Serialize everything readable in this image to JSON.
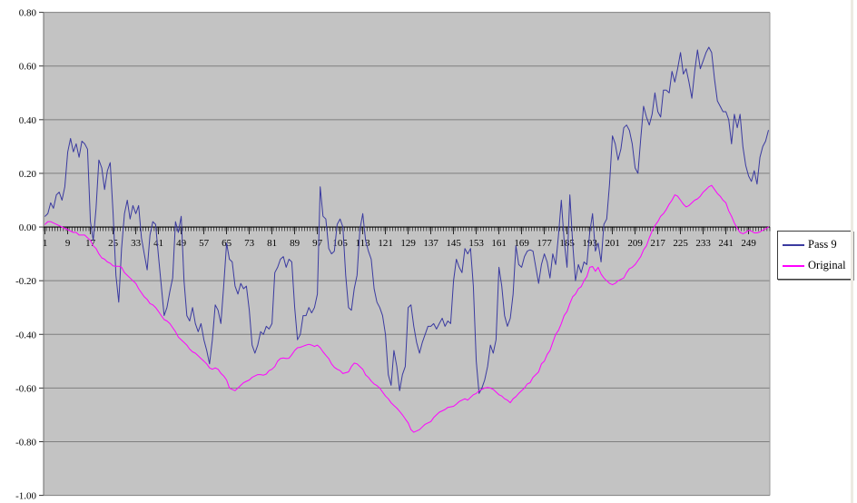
{
  "chart_data": {
    "type": "line",
    "title": "",
    "xlabel": "",
    "ylabel": "",
    "ylim": [
      -1.0,
      0.8
    ],
    "grid": true,
    "legend_position": "right",
    "plot_bg": "#c3c3c3",
    "grid_color": "#7f7f7f",
    "axis_color": "#000000",
    "n_points": 256,
    "x_tick_step": 8,
    "x_tick_labels": [
      "1",
      "9",
      "17",
      "25",
      "33",
      "41",
      "49",
      "57",
      "65",
      "73",
      "81",
      "89",
      "97",
      "105",
      "113",
      "121",
      "129",
      "137",
      "145",
      "153",
      "161",
      "169",
      "177",
      "185",
      "193",
      "201",
      "209",
      "217",
      "225",
      "233",
      "241",
      "249"
    ],
    "y_ticks": {
      "labels": [
        "0.80",
        "0.60",
        "0.40",
        "0.20",
        "0.00",
        "-0.20",
        "-0.40",
        "-0.60",
        "-0.80",
        "-1.00"
      ],
      "values": [
        0.8,
        0.6,
        0.4,
        0.2,
        0.0,
        -0.2,
        -0.4,
        -0.6,
        -0.8,
        -1.0
      ]
    },
    "series": [
      {
        "name": "Pass 9",
        "color": "#3a3aa0",
        "values": [
          0.04,
          0.05,
          0.09,
          0.07,
          0.12,
          0.13,
          0.1,
          0.15,
          0.28,
          0.33,
          0.28,
          0.31,
          0.26,
          0.32,
          0.31,
          0.29,
          0.02,
          -0.05,
          0.07,
          0.25,
          0.22,
          0.14,
          0.21,
          0.24,
          0.05,
          -0.18,
          -0.28,
          -0.08,
          0.05,
          0.1,
          0.03,
          0.08,
          0.05,
          0.08,
          -0.04,
          -0.1,
          -0.16,
          -0.03,
          0.02,
          0.01,
          -0.11,
          -0.22,
          -0.33,
          -0.3,
          -0.24,
          -0.19,
          0.02,
          -0.02,
          0.04,
          -0.2,
          -0.33,
          -0.35,
          -0.3,
          -0.36,
          -0.39,
          -0.36,
          -0.42,
          -0.46,
          -0.51,
          -0.42,
          -0.29,
          -0.31,
          -0.36,
          -0.22,
          -0.06,
          -0.12,
          -0.13,
          -0.22,
          -0.25,
          -0.21,
          -0.23,
          -0.22,
          -0.31,
          -0.44,
          -0.47,
          -0.44,
          -0.39,
          -0.4,
          -0.37,
          -0.38,
          -0.36,
          -0.17,
          -0.15,
          -0.12,
          -0.11,
          -0.15,
          -0.12,
          -0.13,
          -0.3,
          -0.42,
          -0.4,
          -0.33,
          -0.33,
          -0.3,
          -0.32,
          -0.3,
          -0.25,
          0.15,
          0.04,
          0.03,
          -0.08,
          -0.1,
          -0.09,
          0.01,
          0.03,
          0.0,
          -0.18,
          -0.3,
          -0.31,
          -0.23,
          -0.18,
          -0.01,
          0.05,
          -0.05,
          -0.09,
          -0.12,
          -0.23,
          -0.28,
          -0.3,
          -0.33,
          -0.4,
          -0.55,
          -0.59,
          -0.46,
          -0.52,
          -0.61,
          -0.55,
          -0.52,
          -0.3,
          -0.29,
          -0.37,
          -0.43,
          -0.47,
          -0.43,
          -0.4,
          -0.37,
          -0.37,
          -0.36,
          -0.38,
          -0.36,
          -0.34,
          -0.37,
          -0.35,
          -0.36,
          -0.2,
          -0.12,
          -0.15,
          -0.17,
          -0.08,
          -0.1,
          -0.08,
          -0.22,
          -0.5,
          -0.62,
          -0.6,
          -0.57,
          -0.52,
          -0.44,
          -0.47,
          -0.42,
          -0.15,
          -0.22,
          -0.33,
          -0.37,
          -0.34,
          -0.25,
          -0.07,
          -0.14,
          -0.15,
          -0.11,
          -0.09,
          -0.085,
          -0.09,
          -0.15,
          -0.21,
          -0.14,
          -0.1,
          -0.13,
          -0.19,
          -0.1,
          -0.14,
          -0.03,
          0.1,
          -0.05,
          -0.15,
          0.12,
          -0.06,
          -0.2,
          -0.14,
          -0.17,
          -0.13,
          -0.14,
          -0.02,
          0.05,
          -0.09,
          -0.06,
          -0.13,
          0.01,
          0.03,
          0.16,
          0.34,
          0.31,
          0.25,
          0.29,
          0.37,
          0.38,
          0.36,
          0.31,
          0.22,
          0.2,
          0.33,
          0.45,
          0.41,
          0.38,
          0.42,
          0.5,
          0.43,
          0.41,
          0.51,
          0.51,
          0.5,
          0.58,
          0.54,
          0.59,
          0.65,
          0.57,
          0.59,
          0.54,
          0.48,
          0.58,
          0.66,
          0.59,
          0.62,
          0.65,
          0.67,
          0.65,
          0.55,
          0.47,
          0.45,
          0.43,
          0.43,
          0.4,
          0.31,
          0.42,
          0.37,
          0.42,
          0.3,
          0.23,
          0.19,
          0.17,
          0.21,
          0.16,
          0.26,
          0.3,
          0.32,
          0.36
        ]
      },
      {
        "name": "Original",
        "color": "#ff00ff",
        "values": [
          0.01,
          0.02,
          0.02,
          0.015,
          0.01,
          0.005,
          0.0,
          -0.005,
          -0.01,
          -0.015,
          -0.02,
          -0.02,
          -0.03,
          -0.03,
          -0.03,
          -0.04,
          -0.05,
          -0.07,
          -0.08,
          -0.1,
          -0.115,
          -0.12,
          -0.13,
          -0.135,
          -0.145,
          -0.146,
          -0.146,
          -0.15,
          -0.17,
          -0.18,
          -0.19,
          -0.2,
          -0.21,
          -0.23,
          -0.245,
          -0.26,
          -0.27,
          -0.285,
          -0.29,
          -0.3,
          -0.315,
          -0.33,
          -0.345,
          -0.35,
          -0.36,
          -0.375,
          -0.39,
          -0.41,
          -0.42,
          -0.43,
          -0.44,
          -0.455,
          -0.465,
          -0.47,
          -0.48,
          -0.49,
          -0.5,
          -0.51,
          -0.525,
          -0.53,
          -0.525,
          -0.53,
          -0.545,
          -0.555,
          -0.57,
          -0.6,
          -0.605,
          -0.61,
          -0.6,
          -0.59,
          -0.58,
          -0.575,
          -0.57,
          -0.56,
          -0.555,
          -0.55,
          -0.55,
          -0.552,
          -0.548,
          -0.535,
          -0.53,
          -0.52,
          -0.5,
          -0.49,
          -0.488,
          -0.49,
          -0.489,
          -0.476,
          -0.46,
          -0.45,
          -0.448,
          -0.444,
          -0.44,
          -0.437,
          -0.44,
          -0.445,
          -0.44,
          -0.45,
          -0.465,
          -0.478,
          -0.49,
          -0.51,
          -0.523,
          -0.53,
          -0.535,
          -0.546,
          -0.543,
          -0.54,
          -0.52,
          -0.507,
          -0.51,
          -0.52,
          -0.53,
          -0.551,
          -0.56,
          -0.574,
          -0.585,
          -0.591,
          -0.6,
          -0.615,
          -0.63,
          -0.64,
          -0.655,
          -0.665,
          -0.675,
          -0.687,
          -0.7,
          -0.715,
          -0.73,
          -0.755,
          -0.765,
          -0.76,
          -0.755,
          -0.745,
          -0.735,
          -0.73,
          -0.725,
          -0.71,
          -0.7,
          -0.69,
          -0.685,
          -0.68,
          -0.672,
          -0.67,
          -0.668,
          -0.66,
          -0.65,
          -0.645,
          -0.64,
          -0.645,
          -0.635,
          -0.625,
          -0.62,
          -0.61,
          -0.605,
          -0.6,
          -0.598,
          -0.6,
          -0.605,
          -0.615,
          -0.625,
          -0.63,
          -0.64,
          -0.645,
          -0.655,
          -0.64,
          -0.632,
          -0.62,
          -0.61,
          -0.6,
          -0.585,
          -0.58,
          -0.56,
          -0.55,
          -0.54,
          -0.51,
          -0.5,
          -0.475,
          -0.46,
          -0.43,
          -0.4,
          -0.385,
          -0.36,
          -0.33,
          -0.315,
          -0.285,
          -0.26,
          -0.25,
          -0.23,
          -0.222,
          -0.2,
          -0.185,
          -0.15,
          -0.147,
          -0.165,
          -0.15,
          -0.175,
          -0.19,
          -0.2,
          -0.21,
          -0.215,
          -0.21,
          -0.2,
          -0.195,
          -0.19,
          -0.17,
          -0.155,
          -0.15,
          -0.14,
          -0.125,
          -0.11,
          -0.085,
          -0.07,
          -0.04,
          -0.015,
          0.005,
          0.02,
          0.04,
          0.05,
          0.065,
          0.085,
          0.1,
          0.12,
          0.115,
          0.1,
          0.085,
          0.075,
          0.08,
          0.09,
          0.1,
          0.105,
          0.115,
          0.13,
          0.14,
          0.15,
          0.155,
          0.14,
          0.125,
          0.115,
          0.1,
          0.09,
          0.06,
          0.04,
          0.015,
          -0.005,
          -0.02,
          -0.025,
          -0.02,
          -0.012,
          -0.015,
          -0.022,
          -0.022,
          -0.018,
          -0.012,
          -0.007,
          0.0
        ]
      }
    ]
  }
}
